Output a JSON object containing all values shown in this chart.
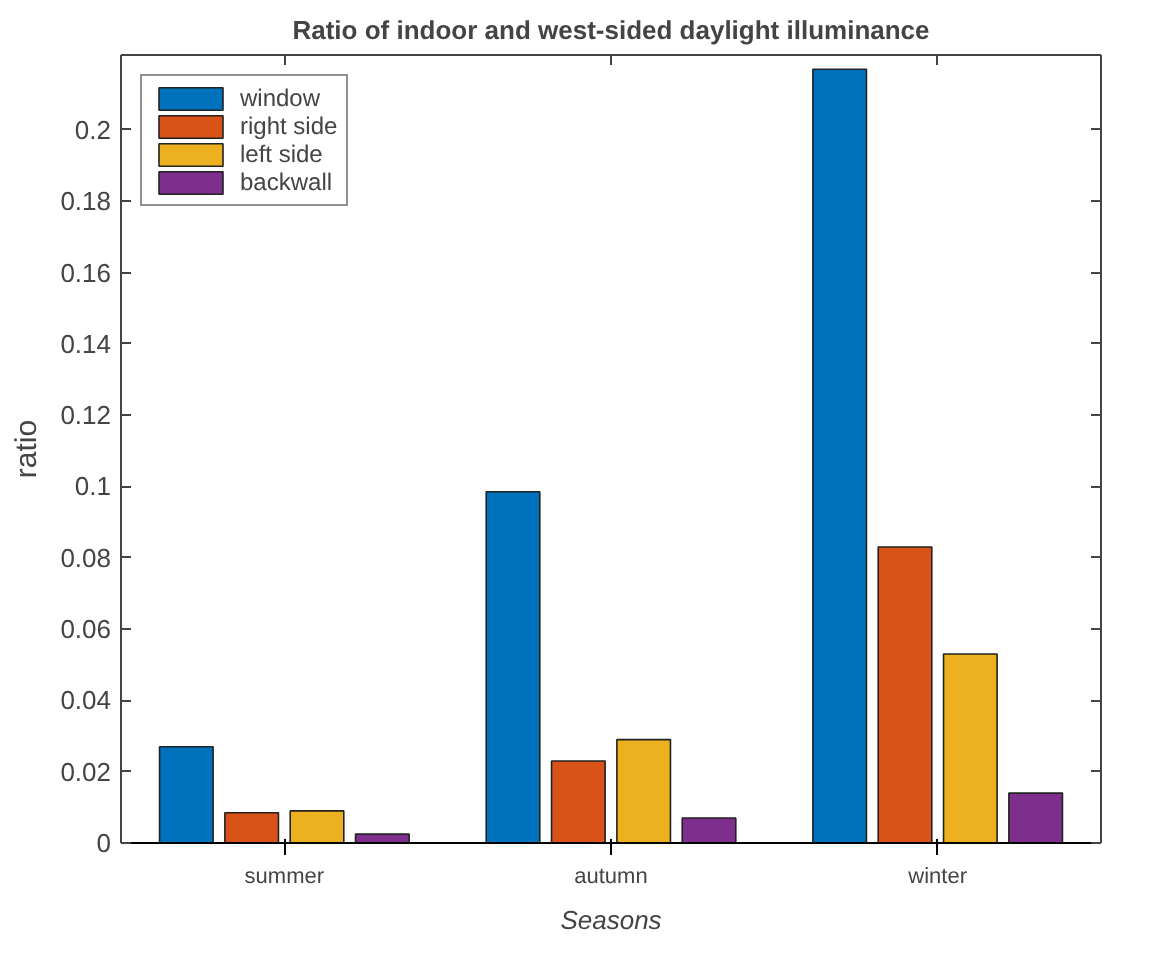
{
  "chart_data": {
    "type": "bar",
    "title": "Ratio of indoor and west-sided daylight illuminance",
    "xlabel": "Seasons",
    "ylabel": "ratio",
    "categories": [
      "summer",
      "autumn",
      "winter"
    ],
    "series": [
      {
        "name": "window",
        "color": "#0072bd",
        "values": [
          0.027,
          0.0985,
          0.217
        ]
      },
      {
        "name": "right side",
        "color": "#d95319",
        "values": [
          0.0085,
          0.023,
          0.083
        ]
      },
      {
        "name": "left side",
        "color": "#edb120",
        "values": [
          0.009,
          0.029,
          0.053
        ]
      },
      {
        "name": "backwall",
        "color": "#7e2f8e",
        "values": [
          0.0025,
          0.007,
          0.014
        ]
      }
    ],
    "ylim": [
      0,
      0.221
    ],
    "yticks": [
      0,
      0.02,
      0.04,
      0.06,
      0.08,
      0.1,
      0.12,
      0.14,
      0.16,
      0.18,
      0.2
    ],
    "grid": false,
    "legend": "top left"
  }
}
